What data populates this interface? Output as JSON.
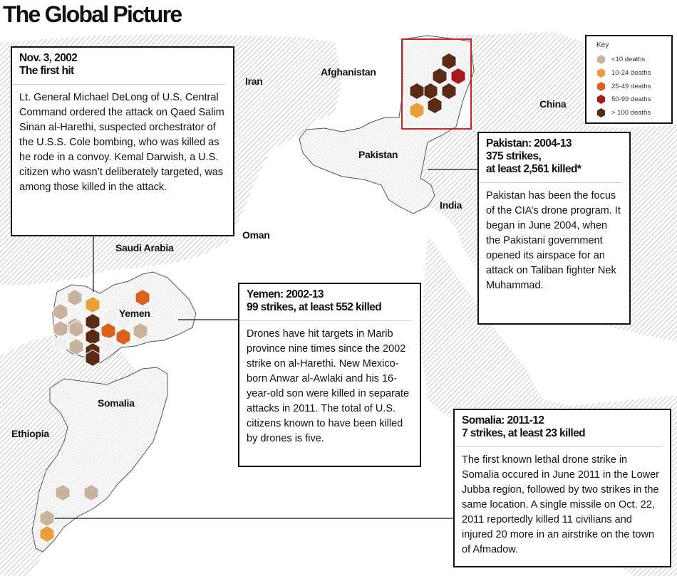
{
  "title": "The Global Picture",
  "map_labels": {
    "iran": "Iran",
    "afghanistan": "Afghanistan",
    "china": "China",
    "pakistan": "Pakistan",
    "india": "India",
    "oman": "Oman",
    "saudi_arabia": "Saudi Arabia",
    "yemen": "Yemen",
    "somalia": "Somalia",
    "ethiopia": "Ethiopia"
  },
  "key": {
    "title": "Key",
    "items": [
      {
        "label": "<10 deaths",
        "color": "#c8b39f"
      },
      {
        "label": "10-24 deaths",
        "color": "#e8a13a"
      },
      {
        "label": "25-49 deaths",
        "color": "#d9621f"
      },
      {
        "label": "50-99 deaths",
        "color": "#a8181e"
      },
      {
        "label": "> 100 deaths",
        "color": "#5a2a14"
      }
    ]
  },
  "callouts": {
    "first_hit": {
      "head_line1": "Nov. 3, 2002",
      "head_line2": "The first hit",
      "body": "Lt. General Michael DeLong of U.S. Central Command ordered the attack on Qaed Salim Sinan al-Harethi, suspected orchestrator of the U.S.S. Cole bombing, who was killed as he rode in a convoy. Kemal Darwish, a U.S. citizen who wasn’t deliberately targeted, was among those killed in the attack."
    },
    "pakistan": {
      "head_line1": "Pakistan: 2004-13",
      "head_line2": "375 strikes,",
      "head_line3": "at least 2,561 killed*",
      "body": "Pakistan has been the focus of the CIA’s drone program. It began in June 2004, when the Pakistani government opened its airspace for an attack on Taliban fighter Nek Muhammad."
    },
    "yemen": {
      "head_line1": "Yemen: 2002-13",
      "head_line2": "99 strikes, at least 552 killed",
      "body": "Drones have hit targets in Marib province nine times since the 2002 strike on al-Harethi. New Mexico-born Anwar al-Awlaki and his 16-year-old son were killed in separate attacks in 2011. The total of U.S. citizens known to have been killed by drones is five."
    },
    "somalia": {
      "head_line1": "Somalia: 2011-12",
      "head_line2": "7 strikes, at least 23 killed",
      "body": "The first known lethal drone strike in Somalia occured in June 2011 in the Lower Jubba region, followed by two strikes in the same location. A single missile on Oct. 22, 2011 reportedly killed 11 civilians and injured 20 more in an airstrike on the town of Afmadow."
    }
  }
}
